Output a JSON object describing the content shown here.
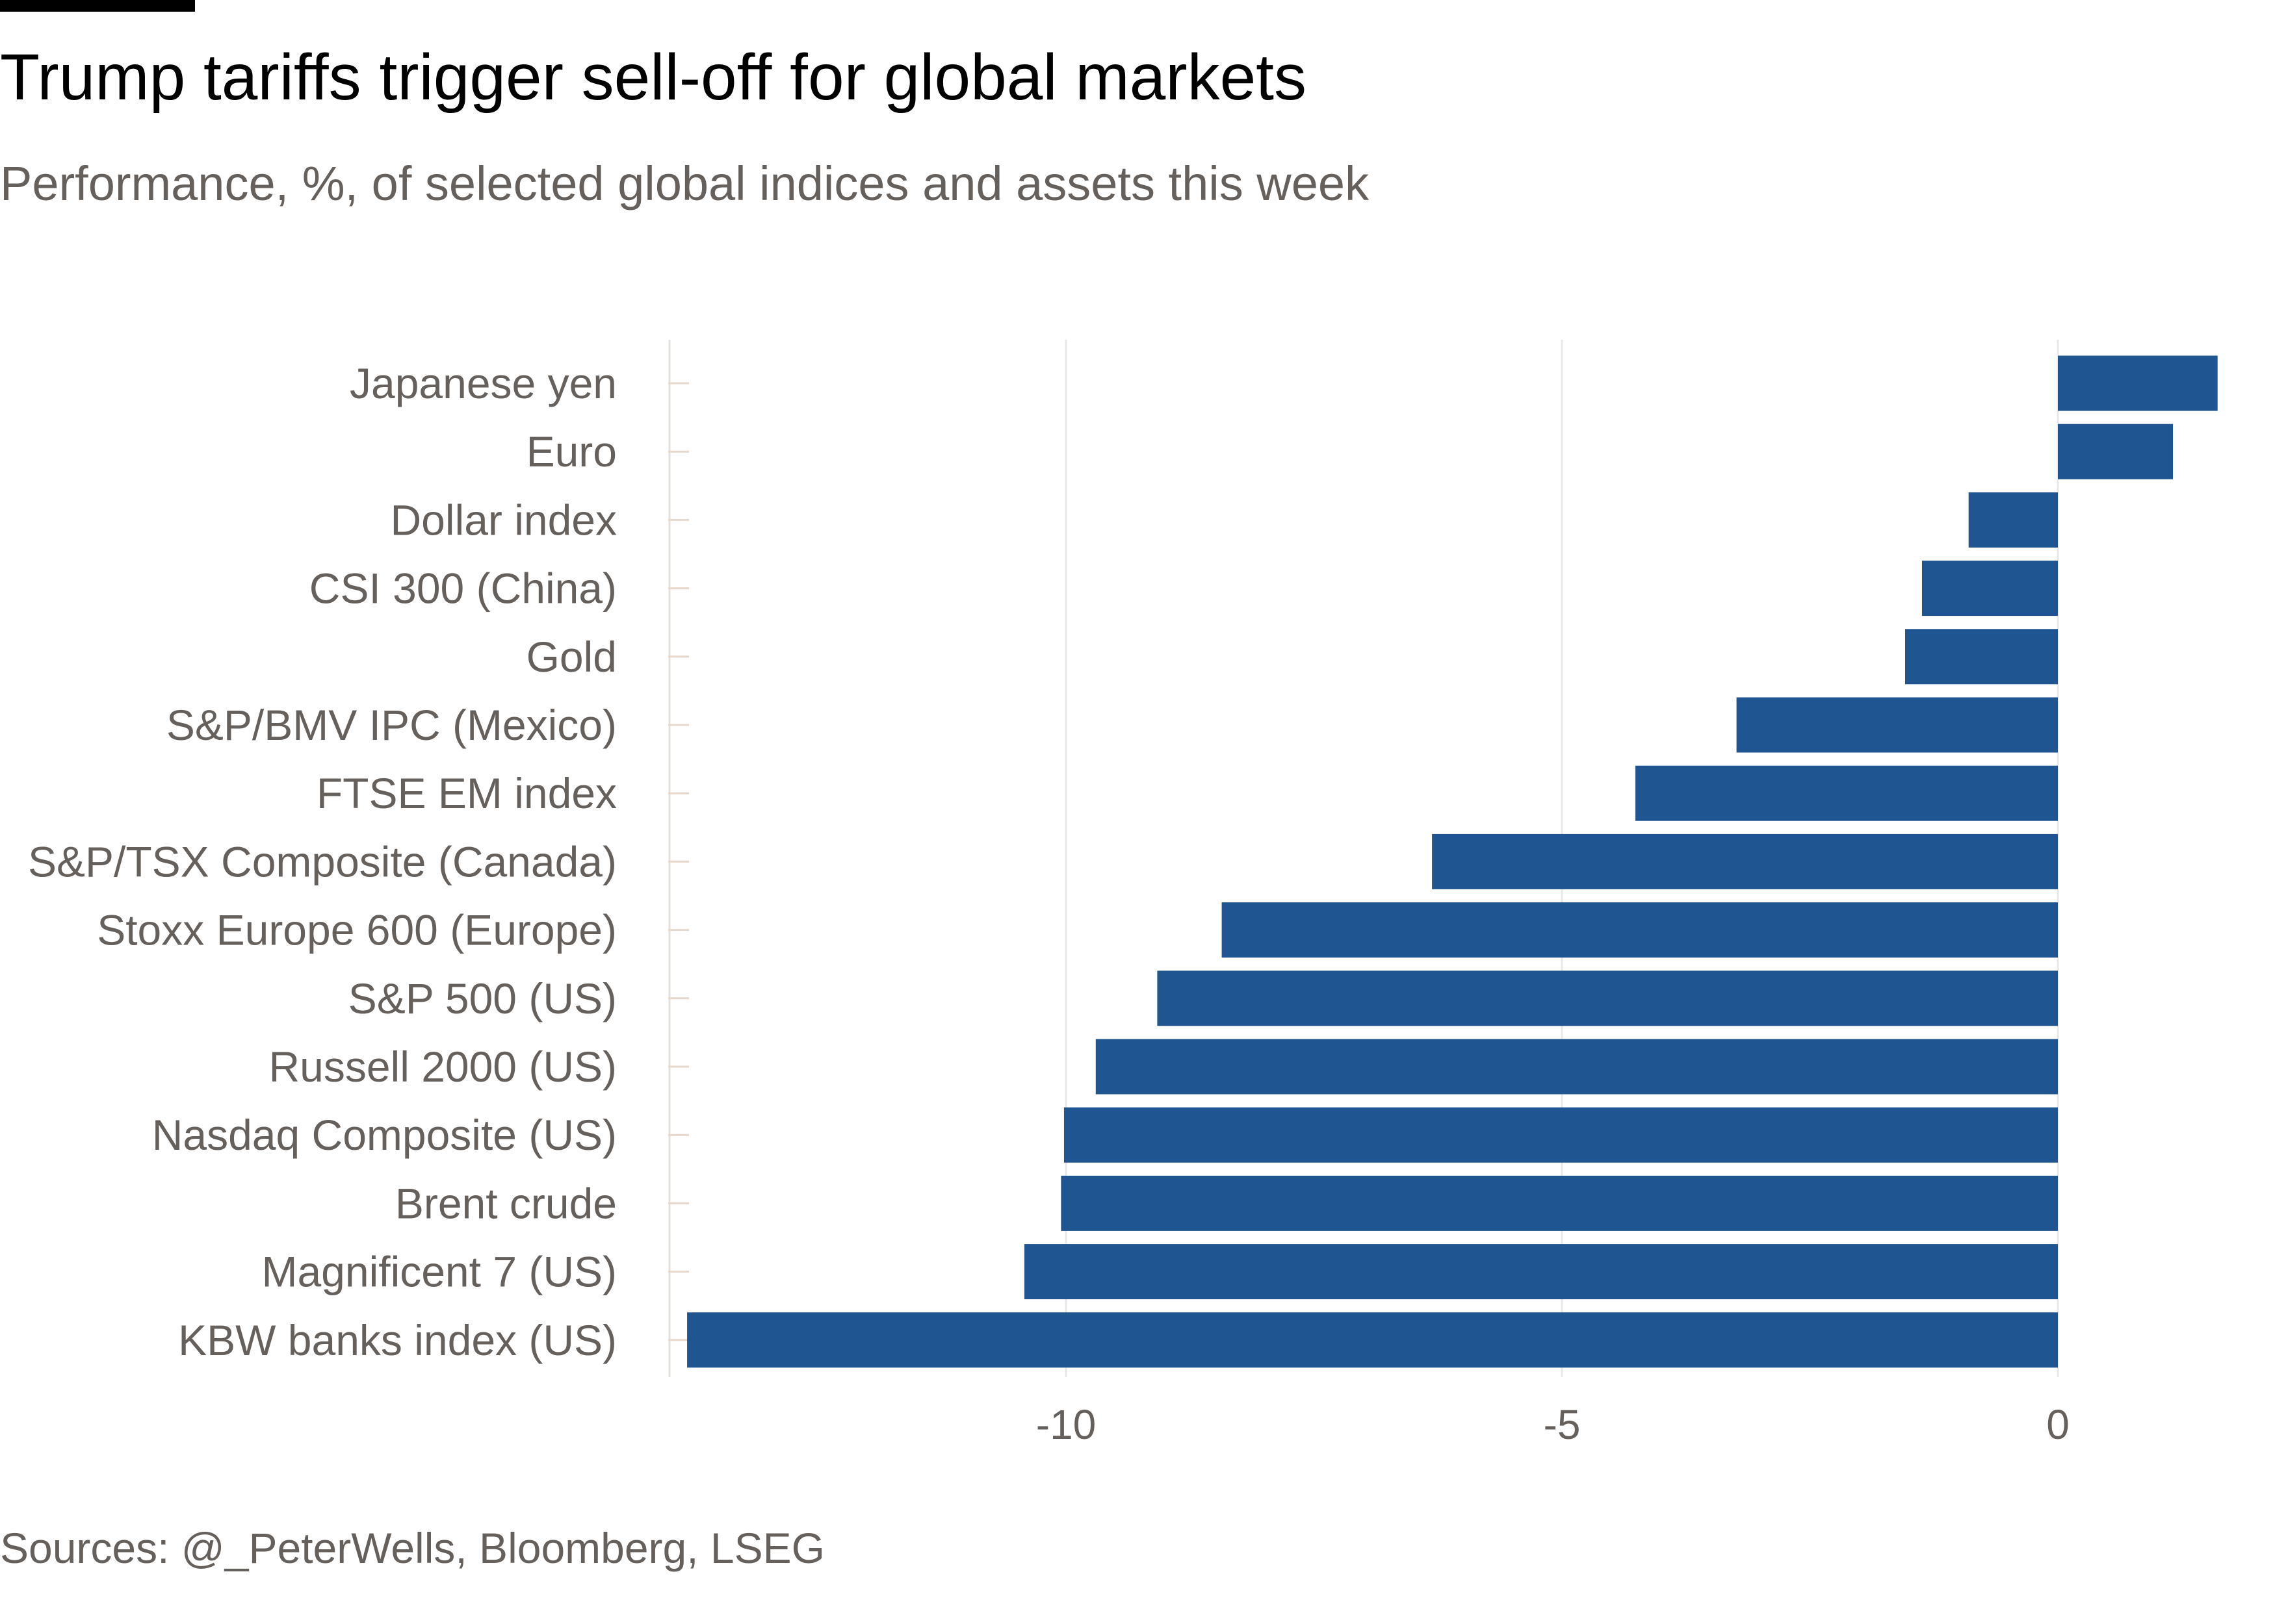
{
  "header": {
    "title": "Trump tariffs trigger sell-off for global markets",
    "subtitle": "Performance, %, of selected global indices and assets this week"
  },
  "footer": {
    "source": "Sources: @_PeterWells, Bloomberg, LSEG"
  },
  "chart_data": {
    "type": "bar",
    "orientation": "horizontal",
    "title": "Trump tariffs trigger sell-off for global markets",
    "subtitle": "Performance, %, of selected global indices and assets this week",
    "xlabel": "",
    "ylabel": "",
    "categories": [
      "Japanese yen",
      "Euro",
      "Dollar index",
      "CSI 300 (China)",
      "Gold",
      "S&P/BMV IPC (Mexico)",
      "FTSE EM index",
      "S&P/TSX Composite (Canada)",
      "Stoxx Europe 600 (Europe)",
      "S&P 500 (US)",
      "Russell 2000 (US)",
      "Nasdaq Composite (US)",
      "Brent crude",
      "Magnificent 7 (US)",
      "KBW banks index (US)"
    ],
    "values": [
      1.61,
      1.16,
      -0.9,
      -1.37,
      -1.54,
      -3.24,
      -4.26,
      -6.31,
      -8.43,
      -9.08,
      -9.7,
      -10.02,
      -10.05,
      -10.42,
      -13.82
    ],
    "xlim": [
      -14,
      1.8
    ],
    "xticks": [
      -10,
      -5,
      0
    ],
    "xtick_labels": [
      "-10",
      "-5",
      "0"
    ],
    "grid": "vertical",
    "bar_color": "#1f5590"
  }
}
